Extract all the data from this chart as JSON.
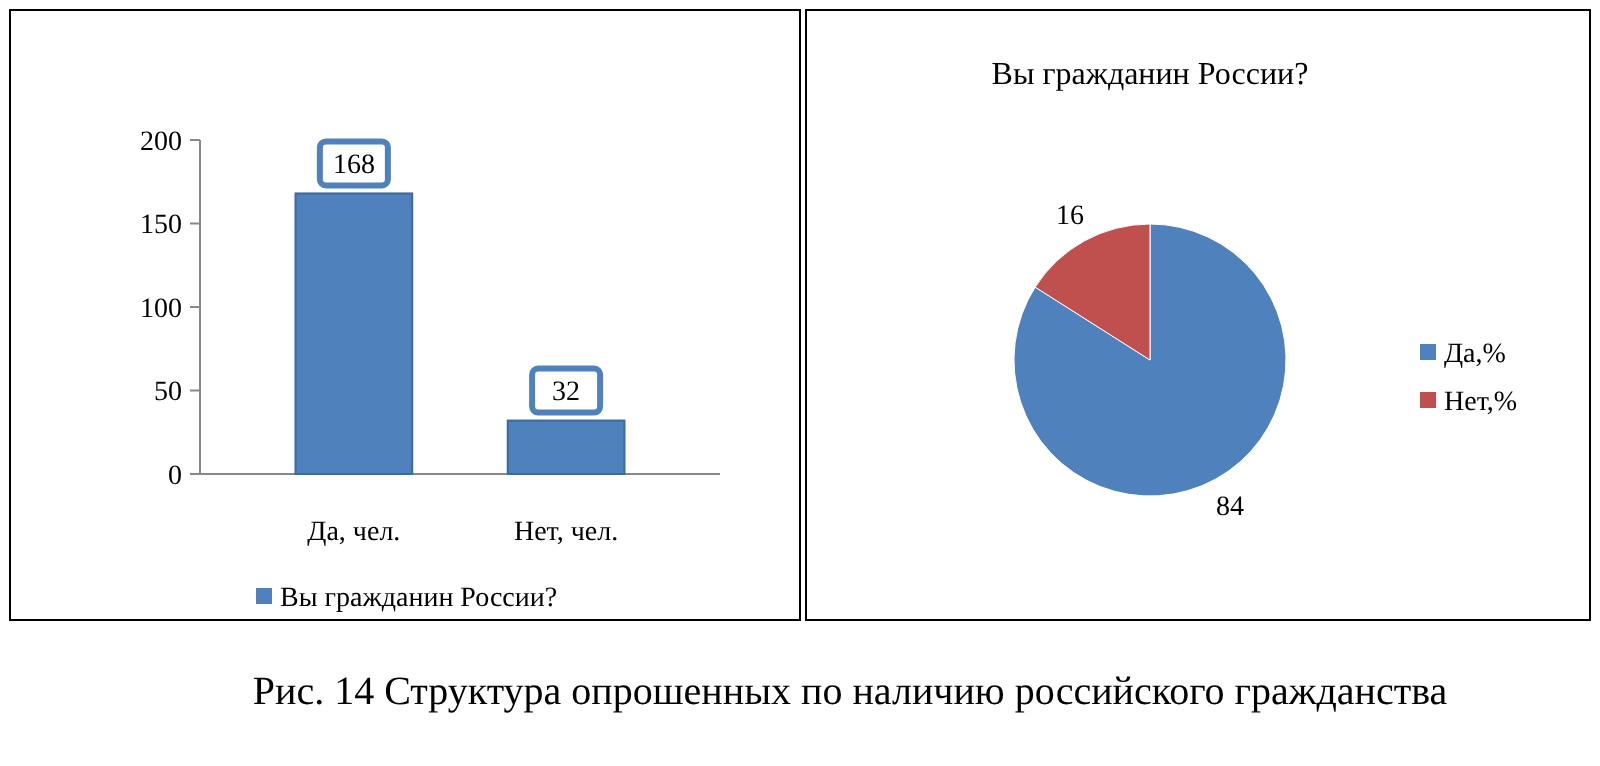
{
  "chart_data": [
    {
      "type": "bar",
      "categories": [
        "Да, чел.",
        "Нет, чел."
      ],
      "series": [
        {
          "name": "Вы гражданин России?",
          "color": "#4f81bd",
          "values": [
            168,
            32
          ]
        }
      ],
      "ylim": [
        0,
        200
      ],
      "yticks": [
        0,
        50,
        100,
        150,
        200
      ],
      "data_labels": true,
      "legend": "bottom",
      "annotations": [
        "Рис.  14 Структура опрошенных по наличию российского гражданства"
      ]
    },
    {
      "type": "pie",
      "title": "Вы гражданин России?",
      "categories": [
        "Да,%",
        "Нет,%"
      ],
      "values": [
        84,
        16
      ],
      "colors": [
        "#4f81bd",
        "#c0504d"
      ],
      "data_labels": true,
      "legend": "right"
    }
  ]
}
